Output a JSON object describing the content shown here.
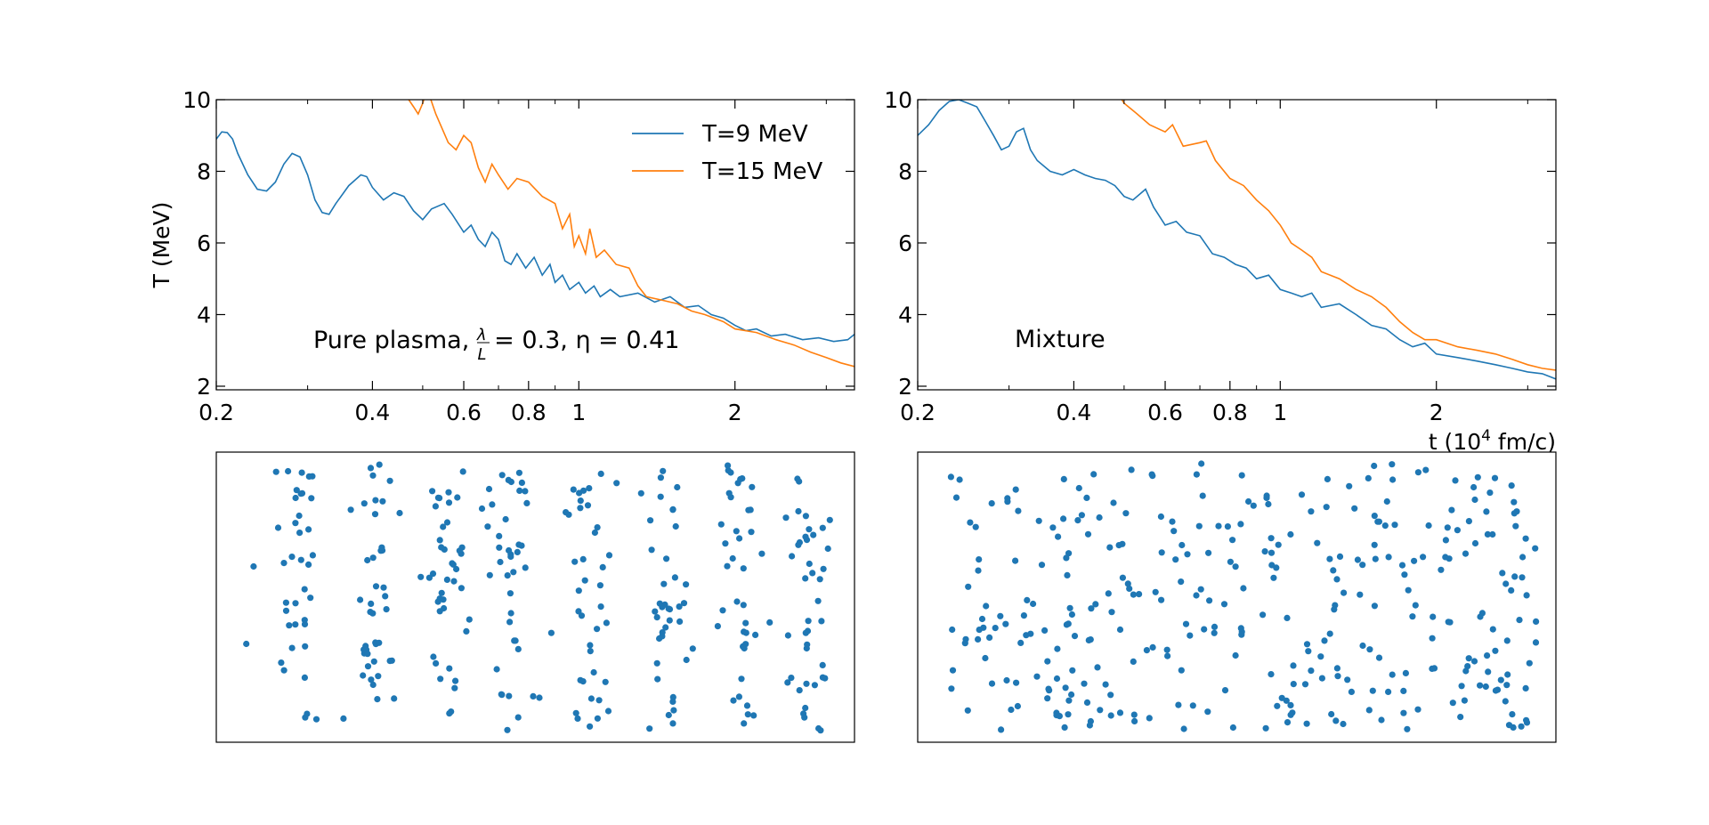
{
  "chart_data": [
    {
      "type": "line",
      "panel": "top-left",
      "xscale": "log",
      "xlim": [
        0.2,
        3.4
      ],
      "ylim": [
        1.9,
        10
      ],
      "xticks": [
        0.2,
        0.4,
        0.6,
        0.8,
        1,
        2
      ],
      "xtick_labels": [
        "0.2",
        "0.4",
        "0.6",
        "0.8",
        "1",
        "2"
      ],
      "yticks": [
        2,
        4,
        6,
        8,
        10
      ],
      "ytick_labels": [
        "2",
        "4",
        "6",
        "8",
        "10"
      ],
      "ylabel": "T (MeV)",
      "annotation": {
        "prefix": "Pure plasma, ",
        "frac_num": "λ",
        "frac_den": "L",
        "rest": " = 0.3, η = 0.41"
      },
      "legend": {
        "placement": "top-right",
        "entries": [
          "T=9 MeV",
          "T=15 MeV"
        ]
      },
      "series": [
        {
          "name": "T=9 MeV",
          "color": "#1f77b4",
          "points": [
            [
              0.2,
              8.9
            ],
            [
              0.205,
              9.1
            ],
            [
              0.21,
              9.08
            ],
            [
              0.215,
              8.9
            ],
            [
              0.22,
              8.5
            ],
            [
              0.23,
              7.9
            ],
            [
              0.24,
              7.5
            ],
            [
              0.25,
              7.45
            ],
            [
              0.26,
              7.7
            ],
            [
              0.27,
              8.2
            ],
            [
              0.28,
              8.5
            ],
            [
              0.29,
              8.4
            ],
            [
              0.3,
              7.9
            ],
            [
              0.31,
              7.2
            ],
            [
              0.32,
              6.85
            ],
            [
              0.33,
              6.8
            ],
            [
              0.34,
              7.1
            ],
            [
              0.36,
              7.6
            ],
            [
              0.38,
              7.9
            ],
            [
              0.39,
              7.85
            ],
            [
              0.4,
              7.55
            ],
            [
              0.42,
              7.2
            ],
            [
              0.44,
              7.4
            ],
            [
              0.46,
              7.3
            ],
            [
              0.48,
              6.9
            ],
            [
              0.5,
              6.65
            ],
            [
              0.52,
              6.95
            ],
            [
              0.55,
              7.1
            ],
            [
              0.57,
              6.8
            ],
            [
              0.6,
              6.3
            ],
            [
              0.62,
              6.5
            ],
            [
              0.64,
              6.1
            ],
            [
              0.66,
              5.9
            ],
            [
              0.68,
              6.3
            ],
            [
              0.7,
              6.1
            ],
            [
              0.72,
              5.5
            ],
            [
              0.74,
              5.4
            ],
            [
              0.76,
              5.7
            ],
            [
              0.79,
              5.3
            ],
            [
              0.82,
              5.6
            ],
            [
              0.85,
              5.1
            ],
            [
              0.88,
              5.4
            ],
            [
              0.9,
              4.9
            ],
            [
              0.93,
              5.1
            ],
            [
              0.96,
              4.7
            ],
            [
              1.0,
              4.9
            ],
            [
              1.03,
              4.6
            ],
            [
              1.07,
              4.8
            ],
            [
              1.1,
              4.5
            ],
            [
              1.15,
              4.7
            ],
            [
              1.2,
              4.5
            ],
            [
              1.3,
              4.6
            ],
            [
              1.4,
              4.35
            ],
            [
              1.5,
              4.5
            ],
            [
              1.6,
              4.2
            ],
            [
              1.7,
              4.25
            ],
            [
              1.8,
              4.0
            ],
            [
              1.9,
              3.9
            ],
            [
              2.0,
              3.7
            ],
            [
              2.1,
              3.55
            ],
            [
              2.2,
              3.6
            ],
            [
              2.35,
              3.4
            ],
            [
              2.5,
              3.45
            ],
            [
              2.7,
              3.3
            ],
            [
              2.9,
              3.35
            ],
            [
              3.1,
              3.25
            ],
            [
              3.3,
              3.3
            ],
            [
              3.4,
              3.45
            ]
          ]
        },
        {
          "name": "T=15 MeV",
          "color": "#ff7f0e",
          "points": [
            [
              0.465,
              10.1
            ],
            [
              0.48,
              9.8
            ],
            [
              0.49,
              9.6
            ],
            [
              0.5,
              9.9
            ],
            [
              0.51,
              10.3
            ],
            [
              0.53,
              9.6
            ],
            [
              0.56,
              8.8
            ],
            [
              0.58,
              8.6
            ],
            [
              0.6,
              9.0
            ],
            [
              0.62,
              8.8
            ],
            [
              0.64,
              8.1
            ],
            [
              0.66,
              7.7
            ],
            [
              0.68,
              8.2
            ],
            [
              0.7,
              7.9
            ],
            [
              0.73,
              7.5
            ],
            [
              0.76,
              7.8
            ],
            [
              0.8,
              7.7
            ],
            [
              0.85,
              7.3
            ],
            [
              0.9,
              7.1
            ],
            [
              0.93,
              6.4
            ],
            [
              0.96,
              6.8
            ],
            [
              0.98,
              5.9
            ],
            [
              1.0,
              6.2
            ],
            [
              1.03,
              5.7
            ],
            [
              1.05,
              6.4
            ],
            [
              1.08,
              5.6
            ],
            [
              1.12,
              5.8
            ],
            [
              1.18,
              5.4
            ],
            [
              1.25,
              5.3
            ],
            [
              1.3,
              4.8
            ],
            [
              1.35,
              4.5
            ],
            [
              1.45,
              4.4
            ],
            [
              1.55,
              4.3
            ],
            [
              1.65,
              4.1
            ],
            [
              1.75,
              4.0
            ],
            [
              1.9,
              3.8
            ],
            [
              2.0,
              3.6
            ],
            [
              2.2,
              3.5
            ],
            [
              2.4,
              3.3
            ],
            [
              2.6,
              3.15
            ],
            [
              2.8,
              2.95
            ],
            [
              3.0,
              2.8
            ],
            [
              3.2,
              2.65
            ],
            [
              3.4,
              2.55
            ]
          ]
        }
      ]
    },
    {
      "type": "line",
      "panel": "top-right",
      "xscale": "log",
      "xlim": [
        0.2,
        3.4
      ],
      "ylim": [
        1.9,
        10
      ],
      "xticks": [
        0.2,
        0.4,
        0.6,
        0.8,
        1,
        2
      ],
      "xtick_labels": [
        "0.2",
        "0.4",
        "0.6",
        "0.8",
        "1",
        "2"
      ],
      "yticks": [
        2,
        4,
        6,
        8,
        10
      ],
      "ytick_labels": [
        "2",
        "4",
        "6",
        "8",
        "10"
      ],
      "xlabel": "t (10⁴ fm/c)",
      "annotation": {
        "text": "Mixture"
      },
      "series": [
        {
          "name": "T=9 MeV",
          "color": "#1f77b4",
          "points": [
            [
              0.2,
              9.0
            ],
            [
              0.21,
              9.3
            ],
            [
              0.22,
              9.7
            ],
            [
              0.23,
              9.95
            ],
            [
              0.24,
              10.0
            ],
            [
              0.25,
              9.9
            ],
            [
              0.26,
              9.8
            ],
            [
              0.27,
              9.4
            ],
            [
              0.28,
              9.0
            ],
            [
              0.29,
              8.6
            ],
            [
              0.3,
              8.7
            ],
            [
              0.31,
              9.1
            ],
            [
              0.32,
              9.2
            ],
            [
              0.33,
              8.6
            ],
            [
              0.34,
              8.3
            ],
            [
              0.36,
              8.0
            ],
            [
              0.38,
              7.9
            ],
            [
              0.4,
              8.05
            ],
            [
              0.42,
              7.9
            ],
            [
              0.44,
              7.8
            ],
            [
              0.46,
              7.75
            ],
            [
              0.48,
              7.6
            ],
            [
              0.5,
              7.3
            ],
            [
              0.52,
              7.2
            ],
            [
              0.55,
              7.5
            ],
            [
              0.57,
              7.0
            ],
            [
              0.6,
              6.5
            ],
            [
              0.63,
              6.6
            ],
            [
              0.66,
              6.3
            ],
            [
              0.7,
              6.2
            ],
            [
              0.74,
              5.7
            ],
            [
              0.78,
              5.6
            ],
            [
              0.82,
              5.4
            ],
            [
              0.86,
              5.3
            ],
            [
              0.9,
              5.0
            ],
            [
              0.95,
              5.1
            ],
            [
              1.0,
              4.7
            ],
            [
              1.05,
              4.6
            ],
            [
              1.1,
              4.5
            ],
            [
              1.15,
              4.6
            ],
            [
              1.2,
              4.2
            ],
            [
              1.3,
              4.3
            ],
            [
              1.4,
              4.0
            ],
            [
              1.5,
              3.7
            ],
            [
              1.6,
              3.6
            ],
            [
              1.7,
              3.3
            ],
            [
              1.8,
              3.1
            ],
            [
              1.9,
              3.2
            ],
            [
              2.0,
              2.9
            ],
            [
              2.2,
              2.8
            ],
            [
              2.4,
              2.7
            ],
            [
              2.6,
              2.6
            ],
            [
              2.8,
              2.5
            ],
            [
              3.0,
              2.4
            ],
            [
              3.2,
              2.35
            ],
            [
              3.4,
              2.2
            ]
          ]
        },
        {
          "name": "T=15 MeV",
          "color": "#ff7f0e",
          "points": [
            [
              0.49,
              10.1
            ],
            [
              0.5,
              9.9
            ],
            [
              0.53,
              9.6
            ],
            [
              0.56,
              9.3
            ],
            [
              0.6,
              9.1
            ],
            [
              0.62,
              9.3
            ],
            [
              0.65,
              8.7
            ],
            [
              0.7,
              8.8
            ],
            [
              0.72,
              8.85
            ],
            [
              0.75,
              8.3
            ],
            [
              0.8,
              7.8
            ],
            [
              0.85,
              7.6
            ],
            [
              0.9,
              7.2
            ],
            [
              0.95,
              6.9
            ],
            [
              1.0,
              6.5
            ],
            [
              1.05,
              6.0
            ],
            [
              1.1,
              5.8
            ],
            [
              1.15,
              5.6
            ],
            [
              1.2,
              5.2
            ],
            [
              1.3,
              5.0
            ],
            [
              1.4,
              4.7
            ],
            [
              1.5,
              4.5
            ],
            [
              1.6,
              4.2
            ],
            [
              1.7,
              3.8
            ],
            [
              1.8,
              3.5
            ],
            [
              1.9,
              3.3
            ],
            [
              2.0,
              3.3
            ],
            [
              2.2,
              3.1
            ],
            [
              2.4,
              3.0
            ],
            [
              2.6,
              2.9
            ],
            [
              2.8,
              2.75
            ],
            [
              3.0,
              2.6
            ],
            [
              3.2,
              2.5
            ],
            [
              3.4,
              2.45
            ]
          ]
        }
      ]
    },
    {
      "type": "scatter",
      "panel": "bottom-left",
      "description_label": "pure plasma particle snapshot",
      "color": "#1f77b4",
      "xlim": [
        0,
        1
      ],
      "ylim": [
        0,
        1
      ],
      "layout": "striped",
      "stripe_centers": [
        0.13,
        0.25,
        0.36,
        0.47,
        0.59,
        0.71,
        0.82,
        0.93
      ],
      "n_points": 320,
      "seed": 7
    },
    {
      "type": "scatter",
      "panel": "bottom-right",
      "description_label": "mixture particle snapshot",
      "color": "#1f77b4",
      "xlim": [
        0,
        1
      ],
      "ylim": [
        0,
        1
      ],
      "layout": "uniform",
      "n_points": 330,
      "seed": 13
    }
  ]
}
